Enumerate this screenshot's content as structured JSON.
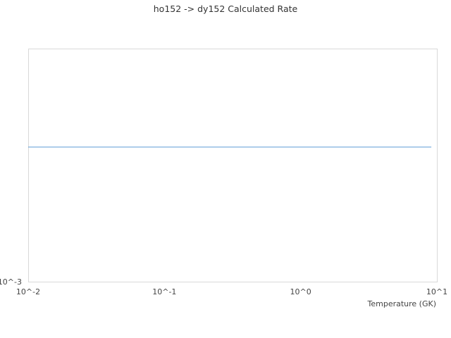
{
  "chart_data": {
    "type": "line",
    "title": "ho152 -> dy152 Calculated Rate",
    "xlabel": "Temperature (GK)",
    "ylabel": "",
    "xscale": "log",
    "yscale": "log",
    "xlim": [
      0.01,
      10
    ],
    "ylim": [
      0.001,
      0.01
    ],
    "x_tick_labels": [
      "10^-2",
      "10^-1",
      "10^0",
      "10^1"
    ],
    "y_tick_labels": [
      "10^-3"
    ],
    "grid": false,
    "series": [
      {
        "x": [
          0.01,
          9.1
        ],
        "y": [
          0.00378,
          0.00378
        ],
        "color": "#5b9bd5"
      }
    ],
    "frame_color": "#d9d9d9"
  }
}
